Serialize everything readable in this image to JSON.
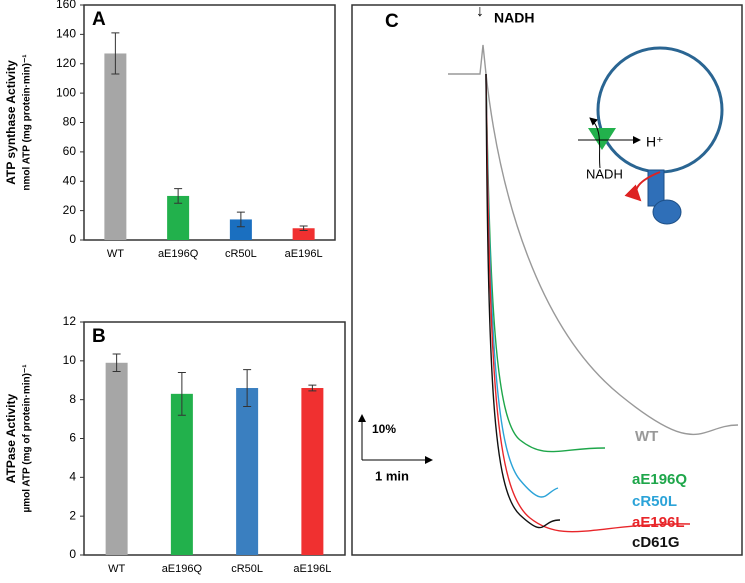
{
  "chart_data": [
    {
      "type": "bar",
      "panel": "A",
      "y_label": [
        "ATP synthase Activity",
        "nmol ATP (mg protein·min)⁻¹"
      ],
      "categories": [
        "WT",
        "aE196Q",
        "cR50L",
        "aE196L"
      ],
      "values": [
        127,
        30,
        14,
        8
      ],
      "errors": [
        14,
        5,
        5,
        1.5
      ],
      "colors": [
        "#a6a6a6",
        "#22b14c",
        "#1a6fc0",
        "#f03030"
      ],
      "ylim": [
        0,
        160
      ],
      "yticks": [
        0,
        20,
        40,
        60,
        80,
        100,
        120,
        140,
        160
      ]
    },
    {
      "type": "bar",
      "panel": "B",
      "y_label": [
        "ATPase Activity",
        "µmol ATP (mg of protein·min)⁻¹"
      ],
      "categories": [
        "WT",
        "aE196Q",
        "cR50L",
        "aE196L"
      ],
      "values": [
        9.9,
        8.3,
        8.6,
        8.6
      ],
      "errors": [
        0.45,
        1.1,
        0.95,
        0.15
      ],
      "colors": [
        "#a6a6a6",
        "#22b14c",
        "#3a7fc0",
        "#f03030"
      ],
      "ylim": [
        0,
        12
      ],
      "yticks": [
        0,
        2,
        4,
        6,
        8,
        10,
        12
      ]
    },
    {
      "type": "trace",
      "panel": "C",
      "injection": "NADH",
      "scale_y": "10%",
      "scale_x": "1 min",
      "diagram_labels": [
        "H⁺",
        "NADH"
      ],
      "series": [
        {
          "name": "WT",
          "color": "#999999"
        },
        {
          "name": "aE196Q",
          "color": "#1ea64a"
        },
        {
          "name": "cR50L",
          "color": "#2ba3d8"
        },
        {
          "name": "aE196L",
          "color": "#e8262a"
        },
        {
          "name": "cD61G",
          "color": "#111111"
        }
      ]
    }
  ]
}
